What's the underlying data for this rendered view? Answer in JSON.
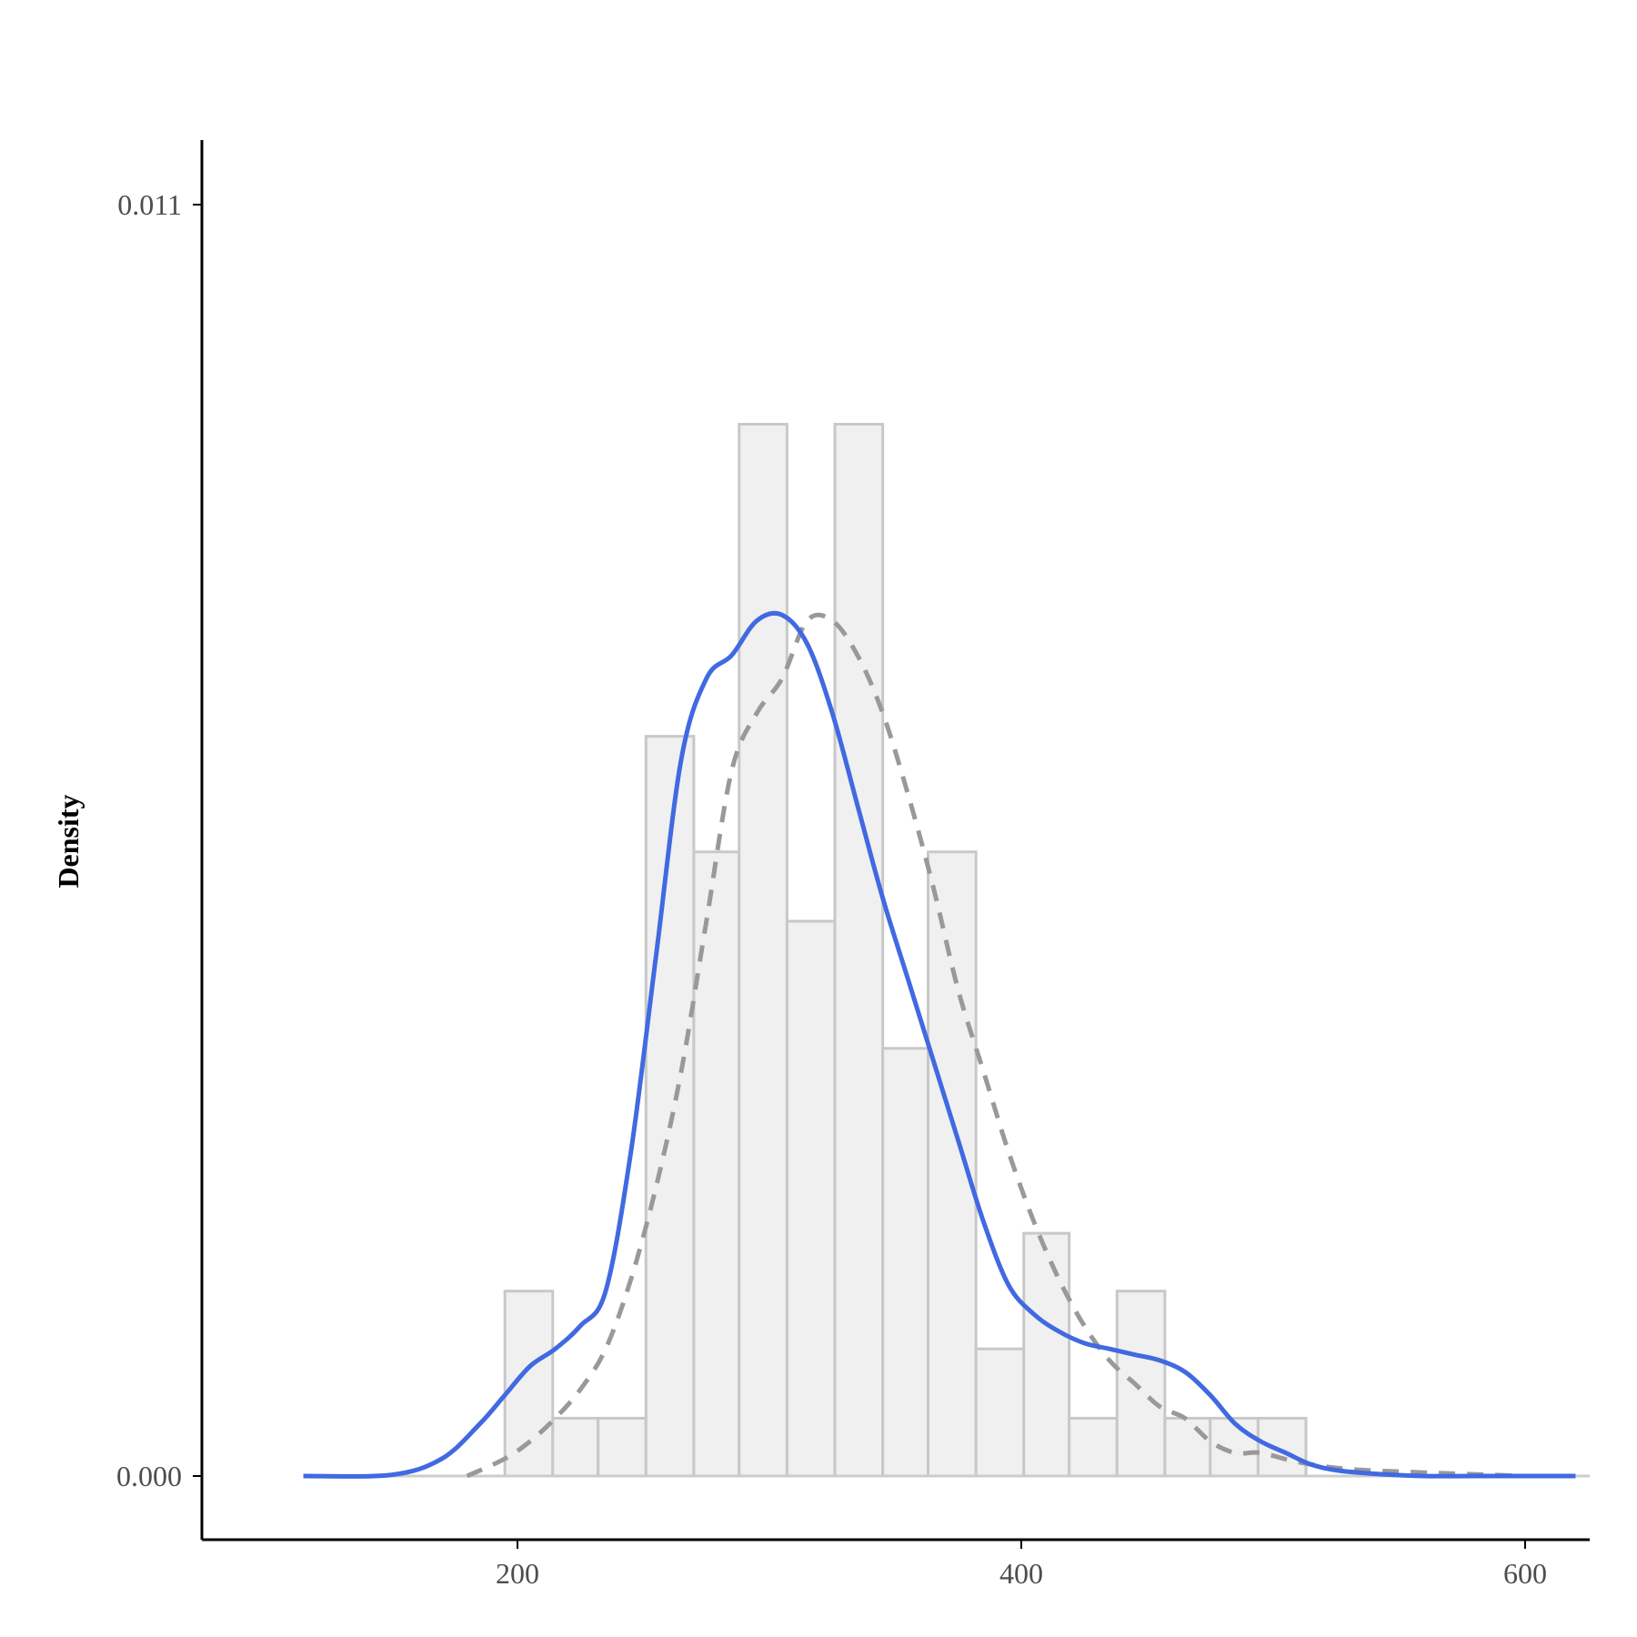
{
  "chart_data": {
    "type": "histogram",
    "title": "",
    "xlabel": "",
    "ylabel": "Density",
    "xlim": [
      100,
      640
    ],
    "ylim": [
      -0.00055,
      0.0116
    ],
    "x_ticks": [
      200,
      400,
      600
    ],
    "x_tick_labels": [
      "200",
      "400",
      "600"
    ],
    "y_ticks": [
      0.0,
      0.011
    ],
    "y_tick_labels": [
      "0.000",
      "0.011"
    ],
    "grid": false,
    "legend": "none",
    "bin_edges": [
      195,
      214,
      232,
      251,
      270,
      288,
      307,
      326,
      345,
      363,
      382,
      401,
      419,
      438,
      457,
      475,
      494,
      513
    ],
    "histogram_density": [
      0.0016,
      0.0005,
      0.0005,
      0.0064,
      0.0054,
      0.0091,
      0.0048,
      0.0091,
      0.0037,
      0.0054,
      0.0011,
      0.0021,
      0.0005,
      0.0016,
      0.0005,
      0.0005,
      0.0005
    ],
    "series": [
      {
        "kind": "kde",
        "style": "solid",
        "x": [
          115,
          150,
          170,
          185,
          195,
          205,
          215,
          225,
          235,
          245,
          255,
          265,
          275,
          285,
          295,
          305,
          315,
          325,
          335,
          345,
          355,
          365,
          375,
          385,
          395,
          405,
          415,
          425,
          435,
          445,
          455,
          465,
          475,
          485,
          495,
          505,
          515,
          525,
          540,
          560,
          580,
          600,
          620
        ],
        "y": [
          0.0,
          1e-05,
          0.00015,
          0.00045,
          0.0007,
          0.00095,
          0.0011,
          0.0013,
          0.0016,
          0.0028,
          0.0045,
          0.0062,
          0.0069,
          0.0071,
          0.0074,
          0.00745,
          0.0072,
          0.0066,
          0.0058,
          0.005,
          0.0043,
          0.0036,
          0.0029,
          0.0022,
          0.00165,
          0.0014,
          0.00125,
          0.00115,
          0.0011,
          0.00105,
          0.001,
          0.0009,
          0.0007,
          0.00045,
          0.0003,
          0.0002,
          0.0001,
          5e-05,
          2e-05,
          0.0,
          0.0,
          0.0,
          0.0
        ]
      },
      {
        "kind": "normal",
        "style": "dashed",
        "x": [
          180,
          195,
          205,
          215,
          225,
          235,
          245,
          255,
          265,
          275,
          285,
          295,
          305,
          315,
          325,
          335,
          345,
          355,
          365,
          375,
          385,
          395,
          405,
          415,
          425,
          435,
          445,
          455,
          465,
          475,
          485,
          495,
          510,
          530,
          560,
          600
        ],
        "y": [
          0.0,
          0.00015,
          0.0003,
          0.0005,
          0.00075,
          0.0011,
          0.0017,
          0.0025,
          0.0035,
          0.0048,
          0.0061,
          0.0066,
          0.0069,
          0.0074,
          0.0074,
          0.0071,
          0.0066,
          0.0059,
          0.0051,
          0.0042,
          0.0035,
          0.0028,
          0.0022,
          0.0017,
          0.0013,
          0.001,
          0.0008,
          0.0006,
          0.0005,
          0.0003,
          0.0002,
          0.0002,
          0.00012,
          6e-05,
          3e-05,
          0.0
        ]
      }
    ],
    "colors": {
      "bar_fill": "#f0f0f0",
      "bar_stroke": "#c8c8c8",
      "kde_line": "#4169e1",
      "normal_line": "#999999",
      "axis": "#000000",
      "baseline": "#cccccc"
    }
  }
}
